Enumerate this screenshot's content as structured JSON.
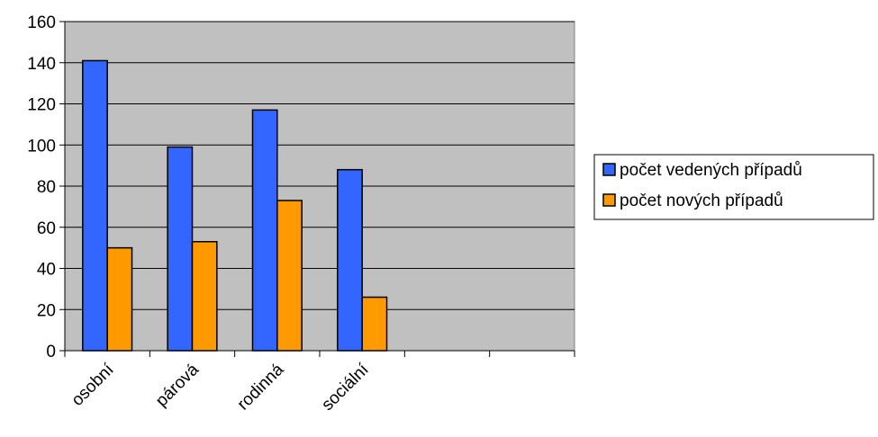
{
  "chart_data": {
    "type": "bar",
    "categories": [
      "osobní",
      "párová",
      "rodinná",
      "sociální",
      "",
      ""
    ],
    "series": [
      {
        "name": "počet vedených případů",
        "color": "#3366FF",
        "values": [
          141,
          99,
          117,
          88,
          null,
          null
        ]
      },
      {
        "name": "počet nových případů",
        "color": "#FF9900",
        "values": [
          50,
          53,
          73,
          26,
          null,
          null
        ]
      }
    ],
    "ylim": [
      0,
      160
    ],
    "yticks": [
      0,
      20,
      40,
      60,
      80,
      100,
      120,
      140,
      160
    ],
    "grid": true,
    "plot_background": "#C0C0C0",
    "legend_position": "right"
  }
}
